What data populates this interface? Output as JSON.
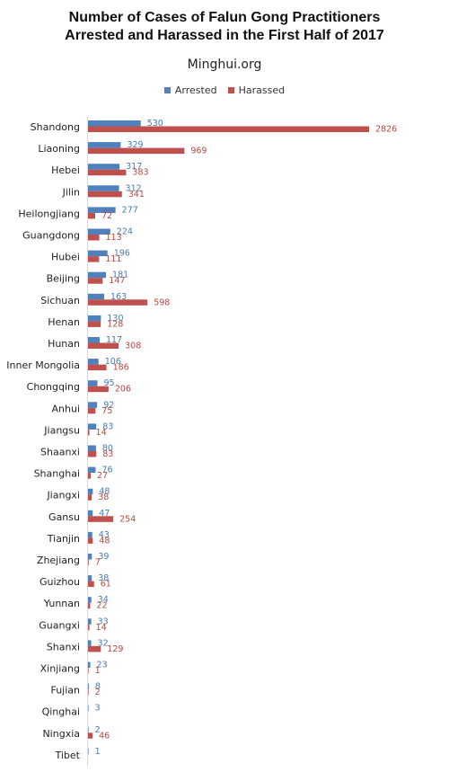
{
  "title_lines": [
    "Number of Cases of Falun Gong Practitioners",
    "Arrested and Harassed in the First Half of 2017"
  ],
  "subtitle": "Minghui.org",
  "colors": {
    "arrested": "#4f81bd",
    "harassed": "#c0504d"
  },
  "chart_data": {
    "type": "bar",
    "orientation": "horizontal",
    "title": "Number of Cases of Falun Gong Practitioners Arrested and Harassed in the First Half of 2017",
    "subtitle": "Minghui.org",
    "legend_position": "top",
    "grid": false,
    "xlim": [
      0,
      2826
    ],
    "categories": [
      "Shandong",
      "Liaoning",
      "Hebei",
      "Jilin",
      "Heilongjiang",
      "Guangdong",
      "Hubei",
      "Beijing",
      "Sichuan",
      "Henan",
      "Hunan",
      "Inner Mongolia",
      "Chongqing",
      "Anhui",
      "Jiangsu",
      "Shaanxi",
      "Shanghai",
      "Jiangxi",
      "Gansu",
      "Tianjin",
      "Zhejiang",
      "Guizhou",
      "Yunnan",
      "Guangxi",
      "Shanxi",
      "Xinjiang",
      "Fujian",
      "Qinghai",
      "Ningxia",
      "Tibet"
    ],
    "series": [
      {
        "name": "Arrested",
        "values": [
          530,
          329,
          317,
          312,
          277,
          224,
          196,
          181,
          163,
          130,
          117,
          106,
          95,
          92,
          83,
          80,
          76,
          48,
          47,
          43,
          39,
          38,
          34,
          33,
          32,
          23,
          8,
          3,
          2,
          1
        ]
      },
      {
        "name": "Harassed",
        "values": [
          2826,
          969,
          383,
          341,
          72,
          113,
          111,
          147,
          598,
          128,
          308,
          186,
          206,
          75,
          14,
          83,
          27,
          38,
          254,
          48,
          7,
          61,
          22,
          14,
          129,
          1,
          2,
          null,
          46,
          null
        ]
      }
    ]
  }
}
